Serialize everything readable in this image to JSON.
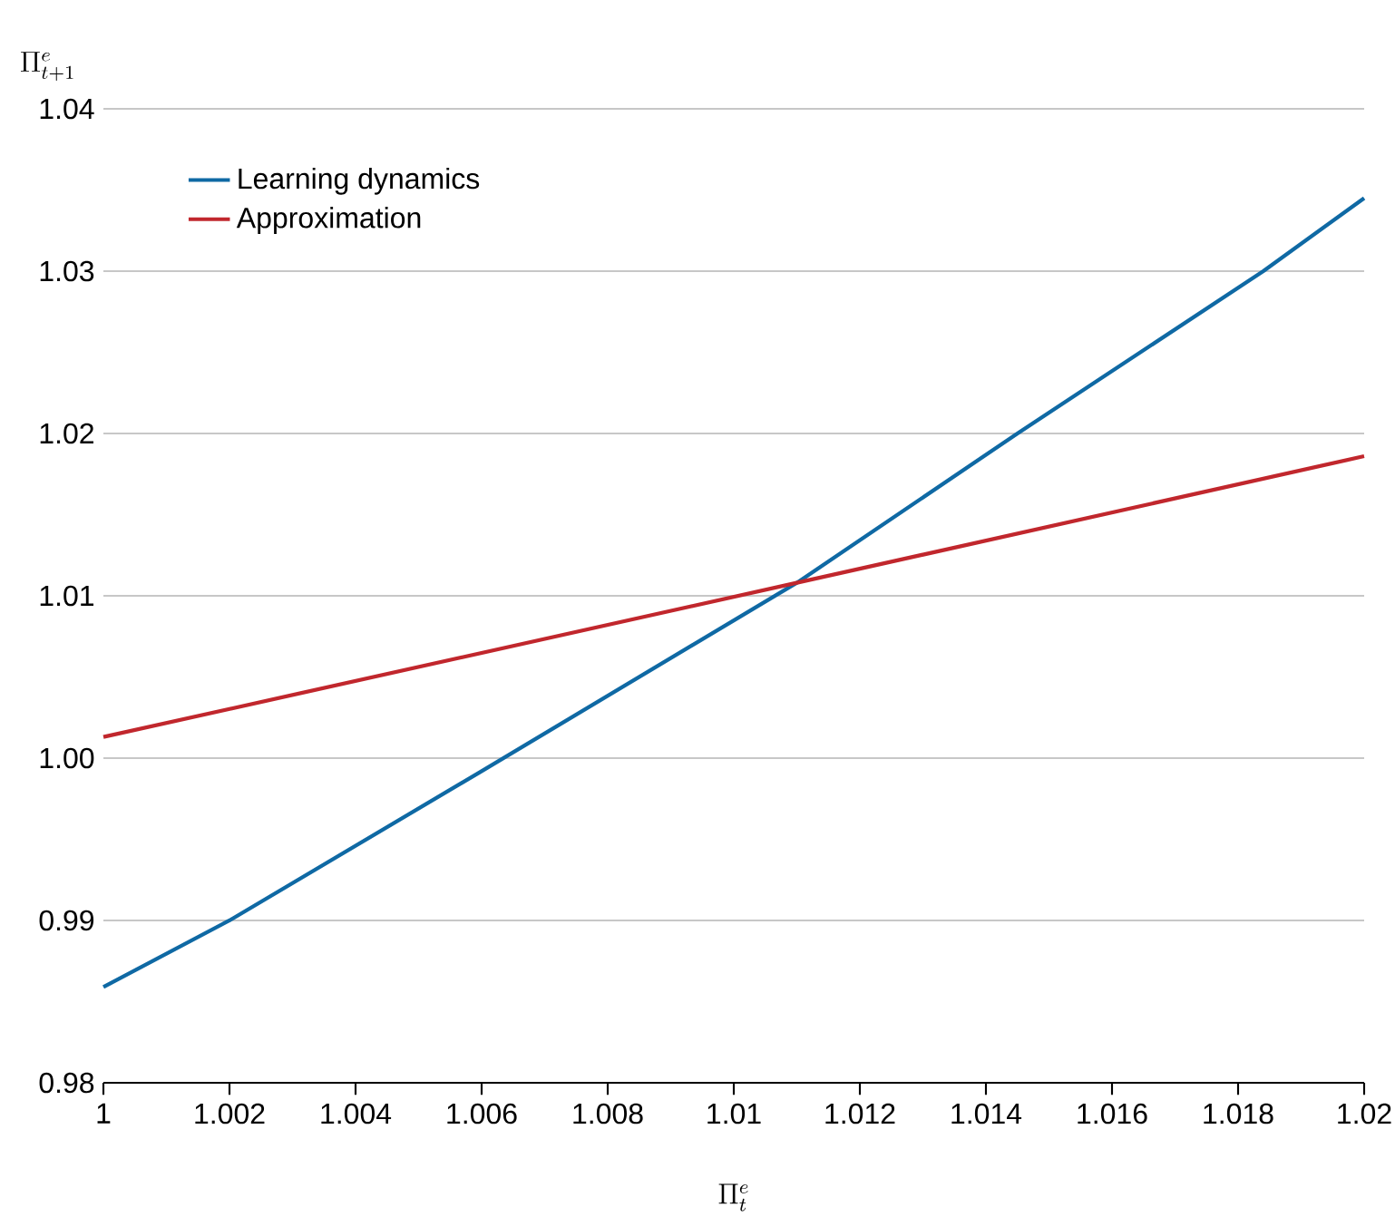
{
  "chart_data": {
    "type": "line",
    "xlabel": "\\Pi_{t}^{e}",
    "ylabel": "\\Pi_{t+1}^{e}",
    "series": [
      {
        "name": "Learning dynamics",
        "color": "#0f69a4",
        "x": [
          1,
          1.002,
          1.006,
          1.011,
          1.0145,
          1.0184,
          1.02
        ],
        "values": [
          0.9859,
          0.99,
          0.9992,
          1.0108,
          1.02,
          1.03,
          1.0345
        ]
      },
      {
        "name": "Approximation",
        "color": "#c1272d",
        "x": [
          1,
          1.011,
          1.02
        ],
        "values": [
          1.0013,
          1.0108,
          1.0186
        ]
      }
    ],
    "xlim": [
      1,
      1.02
    ],
    "xticks": [
      1,
      1.002,
      1.004,
      1.006,
      1.008,
      1.01,
      1.012,
      1.014,
      1.016,
      1.018,
      1.02
    ],
    "ylim": [
      0.98,
      1.04
    ],
    "yticks": [
      0.98,
      0.99,
      {
        "value": 1.0,
        "label": "1.00"
      },
      1.01,
      1.02,
      1.03,
      1.04
    ],
    "grid": "y",
    "legend": "top left",
    "marker": "none",
    "line_style": "solid"
  }
}
